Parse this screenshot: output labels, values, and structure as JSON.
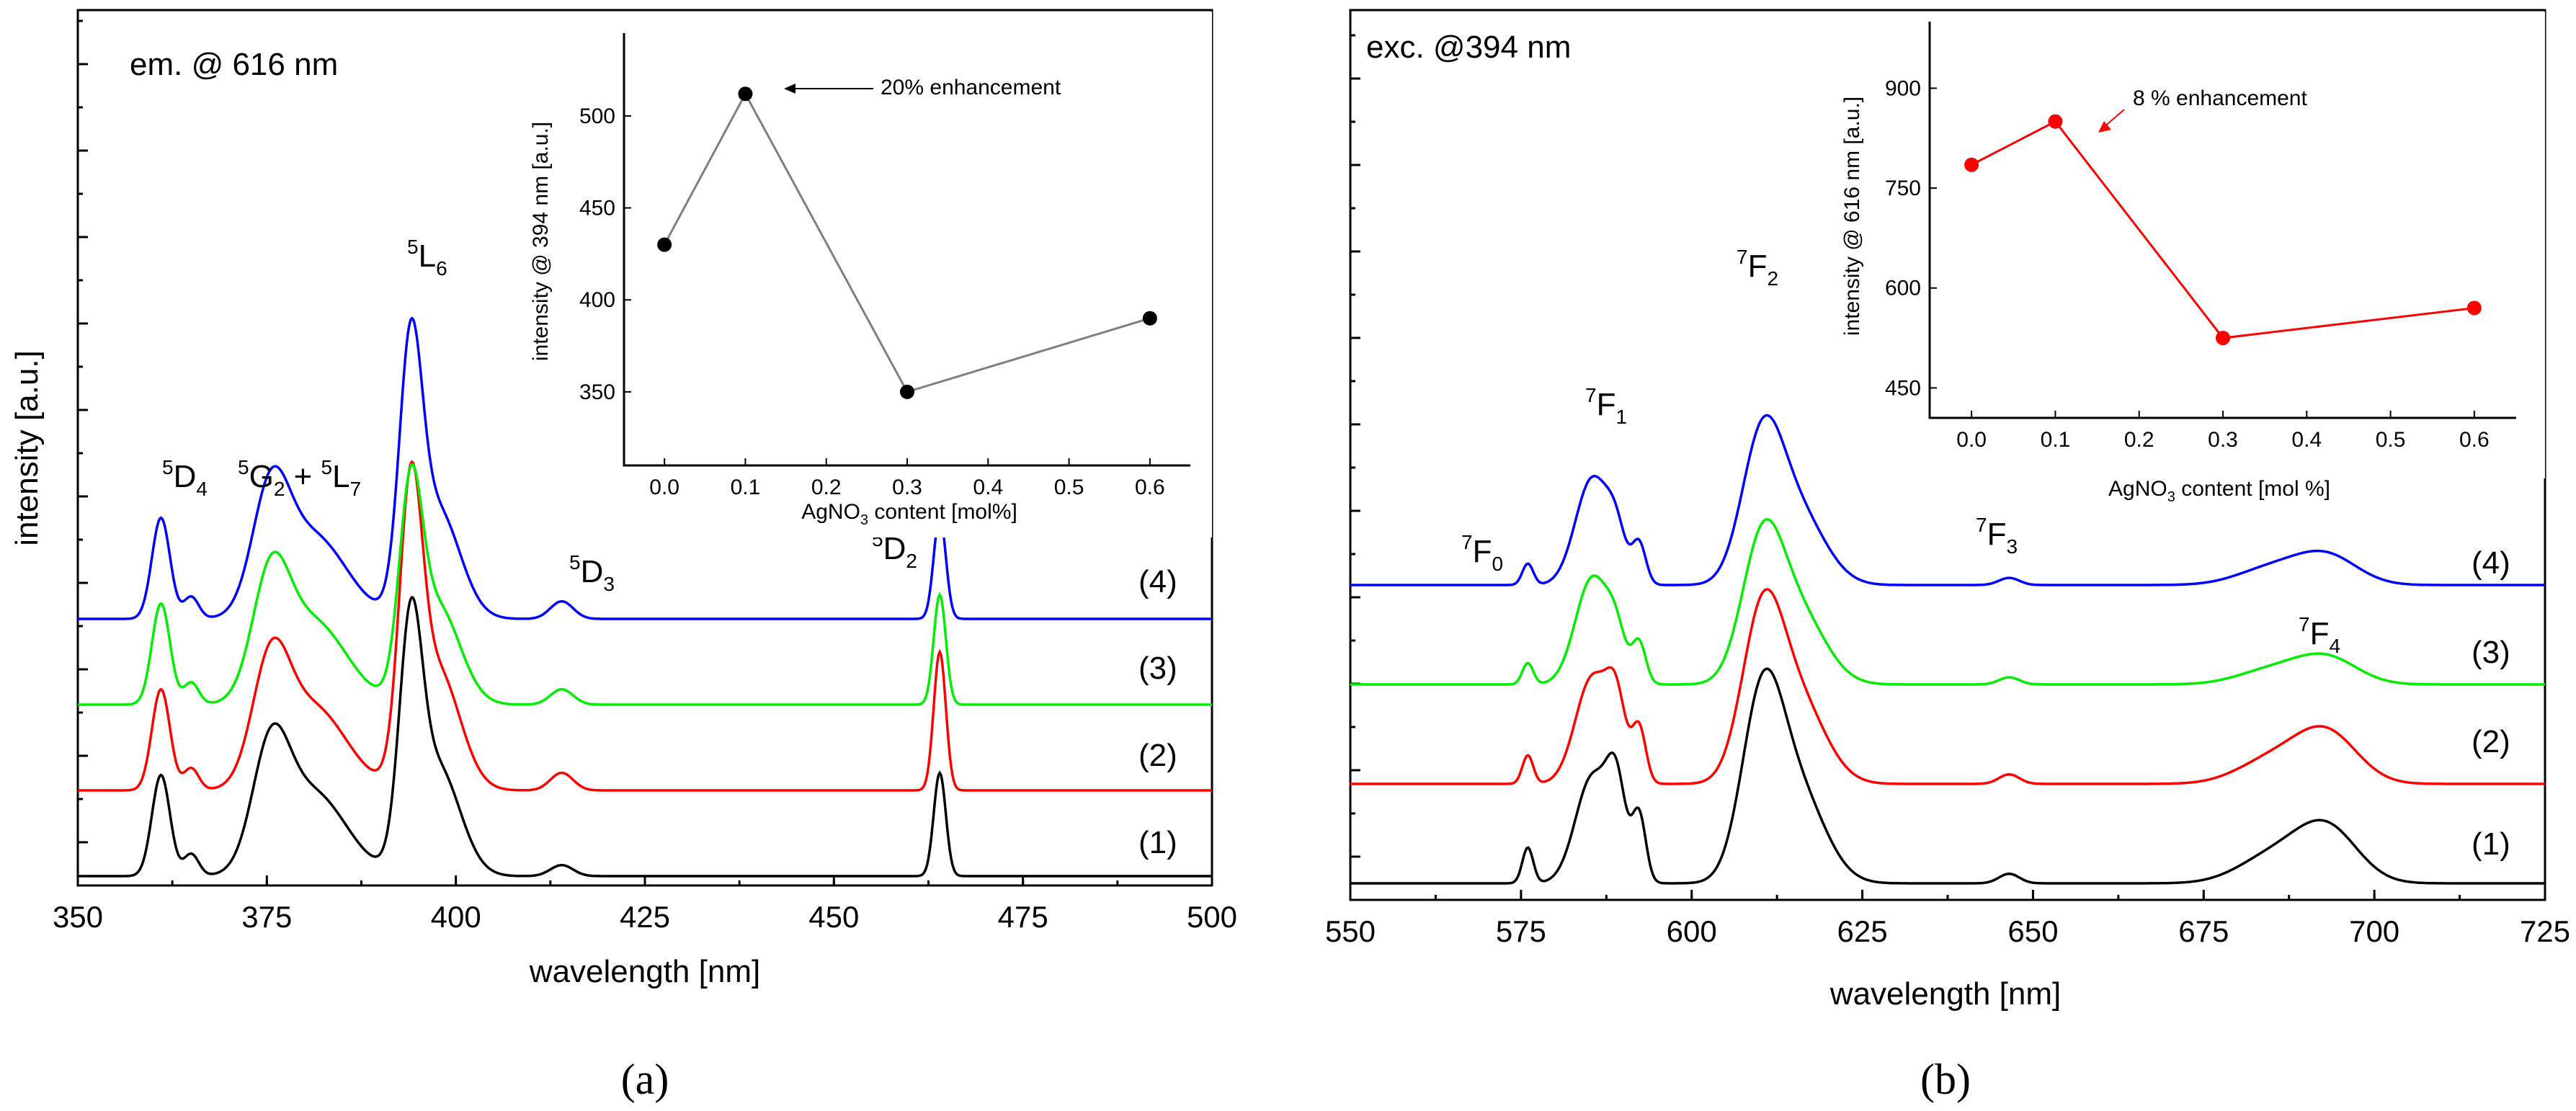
{
  "chart_data": [
    {
      "type": "line",
      "panel_label": "(a)",
      "xlabel": "wavelength [nm]",
      "ylabel": "intensity [a.u.]",
      "xlim": [
        350,
        500
      ],
      "xticks": [
        350,
        375,
        400,
        425,
        450,
        475,
        500
      ],
      "condition": "em. @ 616 nm",
      "peak_labels": [
        {
          "sup": "5",
          "base": "D",
          "sub": "4"
        },
        {
          "sup": "5",
          "base": "G",
          "sub": "2",
          "joiner": " + ",
          "sup2": "5",
          "base2": "L",
          "sub2": "7"
        },
        {
          "sup": "5",
          "base": "L",
          "sub": "6"
        },
        {
          "sup": "5",
          "base": "D",
          "sub": "3"
        },
        {
          "sup": "5",
          "base": "D",
          "sub": "2"
        }
      ],
      "series": [
        {
          "name": "(1)",
          "color": "#000000",
          "offset": 0,
          "peaks": [
            [
              361,
              0.46,
              1.2
            ],
            [
              365,
              0.1,
              1.0
            ],
            [
              375.5,
              0.5,
              2.4
            ],
            [
              381,
              0.38,
              4.5
            ],
            [
              394,
              1.0,
              1.5
            ],
            [
              397.5,
              0.5,
              3.0
            ],
            [
              414,
              0.05,
              1.5
            ],
            [
              464,
              0.47,
              0.8
            ]
          ]
        },
        {
          "name": "(2)",
          "color": "#ff0000",
          "offset": 1,
          "peaks": [
            [
              361,
              0.46,
              1.2
            ],
            [
              365,
              0.1,
              1.0
            ],
            [
              375.5,
              0.5,
              2.4
            ],
            [
              381,
              0.38,
              4.5
            ],
            [
              394,
              1.2,
              1.5
            ],
            [
              397.5,
              0.55,
              3.0
            ],
            [
              414,
              0.08,
              1.5
            ],
            [
              464,
              0.63,
              0.8
            ]
          ]
        },
        {
          "name": "(3)",
          "color": "#00ee00",
          "offset": 2,
          "peaks": [
            [
              361,
              0.46,
              1.2
            ],
            [
              365,
              0.1,
              1.0
            ],
            [
              375.5,
              0.5,
              2.4
            ],
            [
              381,
              0.38,
              4.5
            ],
            [
              394,
              0.85,
              1.5
            ],
            [
              397.5,
              0.45,
              3.0
            ],
            [
              414,
              0.07,
              1.5
            ],
            [
              464,
              0.5,
              0.8
            ]
          ]
        },
        {
          "name": "(4)",
          "color": "#0000ff",
          "offset": 3,
          "peaks": [
            [
              361,
              0.46,
              1.2
            ],
            [
              365,
              0.1,
              1.0
            ],
            [
              375.5,
              0.5,
              2.4
            ],
            [
              381,
              0.38,
              4.5
            ],
            [
              394,
              1.1,
              1.5
            ],
            [
              397.5,
              0.5,
              3.0
            ],
            [
              414,
              0.08,
              1.5
            ],
            [
              464,
              0.47,
              0.8
            ]
          ]
        }
      ],
      "inset": {
        "type": "scatter",
        "xlabel": "AgNO3 content [mol%]",
        "xlabel_parts": {
          "a": "AgNO",
          "sub": "3",
          "b": " content [mol%]"
        },
        "ylabel": "intensity @ 394 nm [a.u.]",
        "xlim": [
          -0.05,
          0.65
        ],
        "ylim": [
          310,
          545
        ],
        "xticks": [
          "0.0",
          "0.1",
          "0.2",
          "0.3",
          "0.4",
          "0.5",
          "0.6"
        ],
        "yticks": [
          350,
          400,
          450,
          500
        ],
        "x": [
          0.0,
          0.1,
          0.3,
          0.6
        ],
        "y": [
          430,
          512,
          350,
          390
        ],
        "color": "#000000",
        "line_color": "#7f7f7f",
        "annotation": "20% enhancement"
      }
    },
    {
      "type": "line",
      "panel_label": "(b)",
      "xlabel": "wavelength [nm]",
      "ylabel": "",
      "xlim": [
        550,
        725
      ],
      "xticks": [
        550,
        575,
        600,
        625,
        650,
        675,
        700,
        725
      ],
      "condition": "exc. @394 nm",
      "peak_labels": [
        {
          "sup": "7",
          "base": "F",
          "sub": "0"
        },
        {
          "sup": "7",
          "base": "F",
          "sub": "1"
        },
        {
          "sup": "7",
          "base": "F",
          "sub": "2"
        },
        {
          "sup": "7",
          "base": "F",
          "sub": "3"
        },
        {
          "sup": "7",
          "base": "F",
          "sub": "4"
        }
      ],
      "series": [
        {
          "name": "(1)",
          "color": "#000000",
          "offset": 0,
          "peaks": [
            [
              576,
              0.15,
              0.8
            ],
            [
              585.5,
              0.45,
              2.5
            ],
            [
              589,
              0.35,
              1.4
            ],
            [
              592.3,
              0.28,
              1.0
            ],
            [
              610.3,
              0.72,
              3.0
            ],
            [
              615.5,
              0.38,
              4.0
            ],
            [
              646.5,
              0.04,
              1.5
            ],
            [
              685,
              0.11,
              5.0
            ],
            [
              693,
              0.23,
              4.5
            ]
          ]
        },
        {
          "name": "(2)",
          "color": "#ff0000",
          "offset": 1,
          "peaks": [
            [
              576,
              0.12,
              0.8
            ],
            [
              585.5,
              0.45,
              2.5
            ],
            [
              589,
              0.28,
              1.4
            ],
            [
              592.3,
              0.23,
              1.0
            ],
            [
              610.3,
              0.65,
              3.0
            ],
            [
              615.5,
              0.35,
              4.0
            ],
            [
              646.5,
              0.04,
              1.5
            ],
            [
              685,
              0.1,
              5.0
            ],
            [
              693,
              0.21,
              4.5
            ]
          ]
        },
        {
          "name": "(3)",
          "color": "#00ee00",
          "offset": 2,
          "peaks": [
            [
              576,
              0.09,
              0.8
            ],
            [
              585.5,
              0.45,
              2.5
            ],
            [
              589,
              0.15,
              1.4
            ],
            [
              592.3,
              0.17,
              1.0
            ],
            [
              610.3,
              0.55,
              3.0
            ],
            [
              615.5,
              0.3,
              4.0
            ],
            [
              646.5,
              0.03,
              1.5
            ],
            [
              685,
              0.06,
              5.0
            ],
            [
              693,
              0.11,
              4.5
            ]
          ]
        },
        {
          "name": "(4)",
          "color": "#0000ff",
          "offset": 3,
          "peaks": [
            [
              576,
              0.09,
              0.8
            ],
            [
              585.5,
              0.45,
              2.5
            ],
            [
              589,
              0.16,
              1.4
            ],
            [
              592.3,
              0.17,
              1.0
            ],
            [
              610.3,
              0.57,
              3.0
            ],
            [
              615.5,
              0.3,
              4.0
            ],
            [
              646.5,
              0.03,
              1.5
            ],
            [
              685,
              0.07,
              5.0
            ],
            [
              693,
              0.12,
              4.5
            ]
          ]
        }
      ],
      "inset": {
        "type": "scatter",
        "xlabel": "AgNO3 content [mol %]",
        "xlabel_parts": {
          "a": "AgNO",
          "sub": "3",
          "b": " content [mol %]"
        },
        "ylabel": "intensity @ 616 nm [a.u.]",
        "xlim": [
          -0.05,
          0.65
        ],
        "ylim": [
          405,
          1000
        ],
        "xticks": [
          "0.0",
          "0.1",
          "0.2",
          "0.3",
          "0.4",
          "0.5",
          "0.6"
        ],
        "yticks": [
          450,
          600,
          750,
          900
        ],
        "x": [
          0.0,
          0.1,
          0.3,
          0.6
        ],
        "y": [
          785,
          850,
          525,
          570
        ],
        "color": "#ff0000",
        "line_color": "#ff0000",
        "annotation": "8 % enhancement"
      }
    }
  ]
}
